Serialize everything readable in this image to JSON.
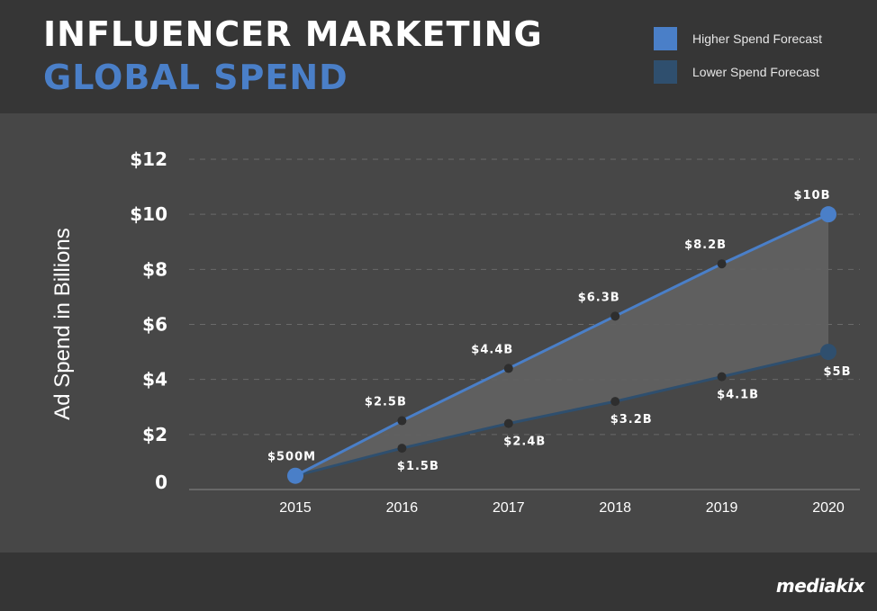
{
  "header": {
    "title_line1": "INFLUENCER MARKETING",
    "title_line2": "GLOBAL SPEND"
  },
  "legend": [
    {
      "label": "Higher Spend Forecast",
      "color": "#4a7fc8"
    },
    {
      "label": "Lower Spend Forecast",
      "color": "#2f4f6e"
    }
  ],
  "brand": "mediakix",
  "colors": {
    "high_line": "#4a7fc8",
    "low_line": "#2f4f6e",
    "fill": "#616161",
    "point": "#2e2e2e",
    "grid": "#6a6a6a"
  },
  "chart_data": {
    "type": "line",
    "ylabel": "Ad Spend in Billions",
    "ylim": [
      0,
      12
    ],
    "y_ticks": [
      {
        "value": 0,
        "label": "0"
      },
      {
        "value": 2,
        "label": "$2"
      },
      {
        "value": 4,
        "label": "$4"
      },
      {
        "value": 6,
        "label": "$6"
      },
      {
        "value": 8,
        "label": "$8"
      },
      {
        "value": 10,
        "label": "$10"
      },
      {
        "value": 12,
        "label": "$12"
      }
    ],
    "categories": [
      "2015",
      "2016",
      "2017",
      "2018",
      "2019",
      "2020"
    ],
    "grid": true,
    "series": [
      {
        "name": "Higher Spend Forecast",
        "values": [
          0.5,
          2.5,
          4.4,
          6.3,
          8.2,
          10
        ],
        "labels": [
          "$500M",
          "$2.5B",
          "$4.4B",
          "$6.3B",
          "$8.2B",
          "$10B"
        ]
      },
      {
        "name": "Lower Spend Forecast",
        "values": [
          0.5,
          1.5,
          2.4,
          3.2,
          4.1,
          5
        ],
        "labels": [
          "",
          "$1.5B",
          "$2.4B",
          "$3.2B",
          "$4.1B",
          "$5B"
        ]
      }
    ]
  }
}
